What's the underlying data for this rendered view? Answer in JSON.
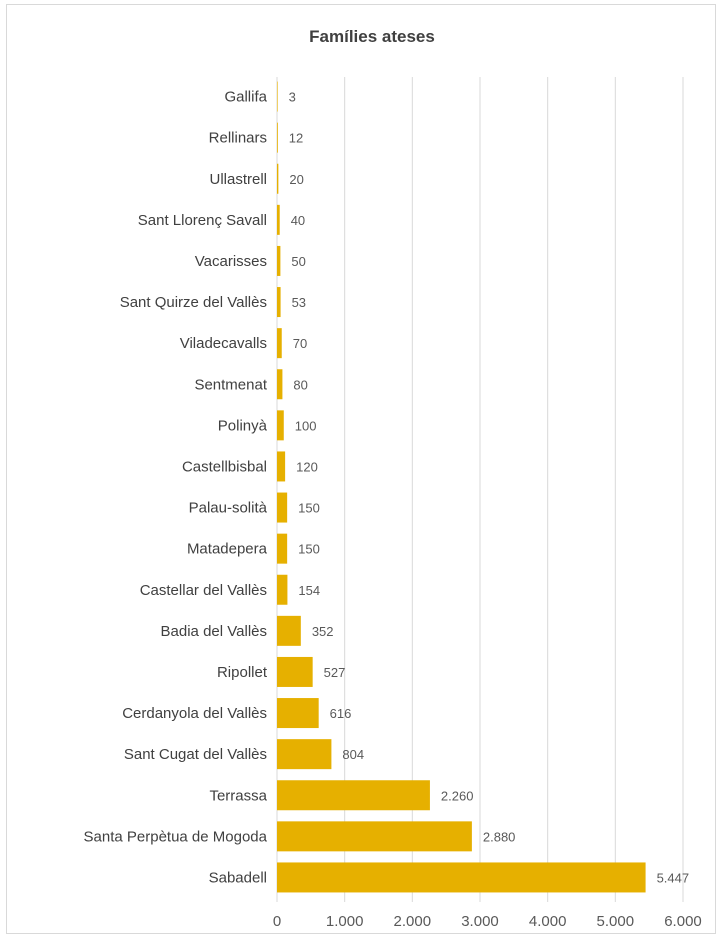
{
  "chart_data": {
    "type": "bar",
    "orientation": "horizontal",
    "title": "Famílies ateses",
    "xlabel": "",
    "ylabel": "",
    "categories": [
      "Gallifa",
      "Rellinars",
      "Ullastrell",
      "Sant Llorenç Savall",
      "Vacarisses",
      "Sant Quirze del Vallès",
      "Viladecavalls",
      "Sentmenat",
      "Polinyà",
      "Castellbisbal",
      "Palau-solità",
      "Matadepera",
      "Castellar del Vallès",
      "Badia del Vallès",
      "Ripollet",
      "Cerdanyola del Vallès",
      "Sant Cugat del Vallès",
      "Terrassa",
      "Santa Perpètua de Mogoda",
      "Sabadell"
    ],
    "values": [
      3,
      12,
      20,
      40,
      50,
      53,
      70,
      80,
      100,
      120,
      150,
      150,
      154,
      352,
      527,
      616,
      804,
      2260,
      2880,
      5447
    ],
    "value_labels": [
      "3",
      "12",
      "20",
      "40",
      "50",
      "53",
      "70",
      "80",
      "100",
      "120",
      "150",
      "150",
      "154",
      "352",
      "527",
      "616",
      "804",
      "2.260",
      "2.880",
      "5.447"
    ],
    "xlim": [
      0,
      6000
    ],
    "xticks": [
      0,
      1000,
      2000,
      3000,
      4000,
      5000,
      6000
    ],
    "xtick_labels": [
      "0",
      "1.000",
      "2.000",
      "3.000",
      "4.000",
      "5.000",
      "6.000"
    ],
    "grid": "vertical",
    "legend": "none",
    "colors": {
      "bar": "#E6B000",
      "grid": "#d9d9d9",
      "text": "#404040",
      "value_text": "#595959",
      "border": "#d9d9d9"
    }
  }
}
